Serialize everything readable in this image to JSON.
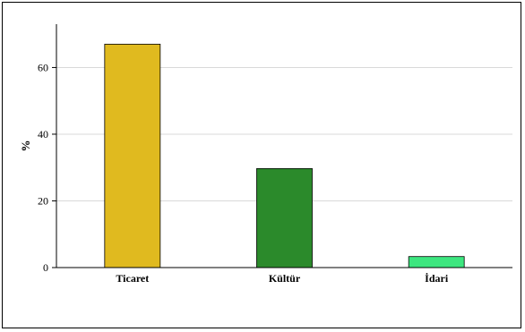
{
  "chart_data": {
    "type": "bar",
    "categories": [
      "Ticaret",
      "Kültür",
      "İdari"
    ],
    "values": [
      67,
      29.7,
      3.3
    ],
    "ylabel": "%",
    "xlabel": "",
    "ylim": [
      0,
      73
    ],
    "yticks": [
      0,
      20,
      40,
      60
    ],
    "grid": true,
    "colors": [
      "#E0BA1F",
      "#2B8A2B",
      "#3DE67F"
    ]
  }
}
